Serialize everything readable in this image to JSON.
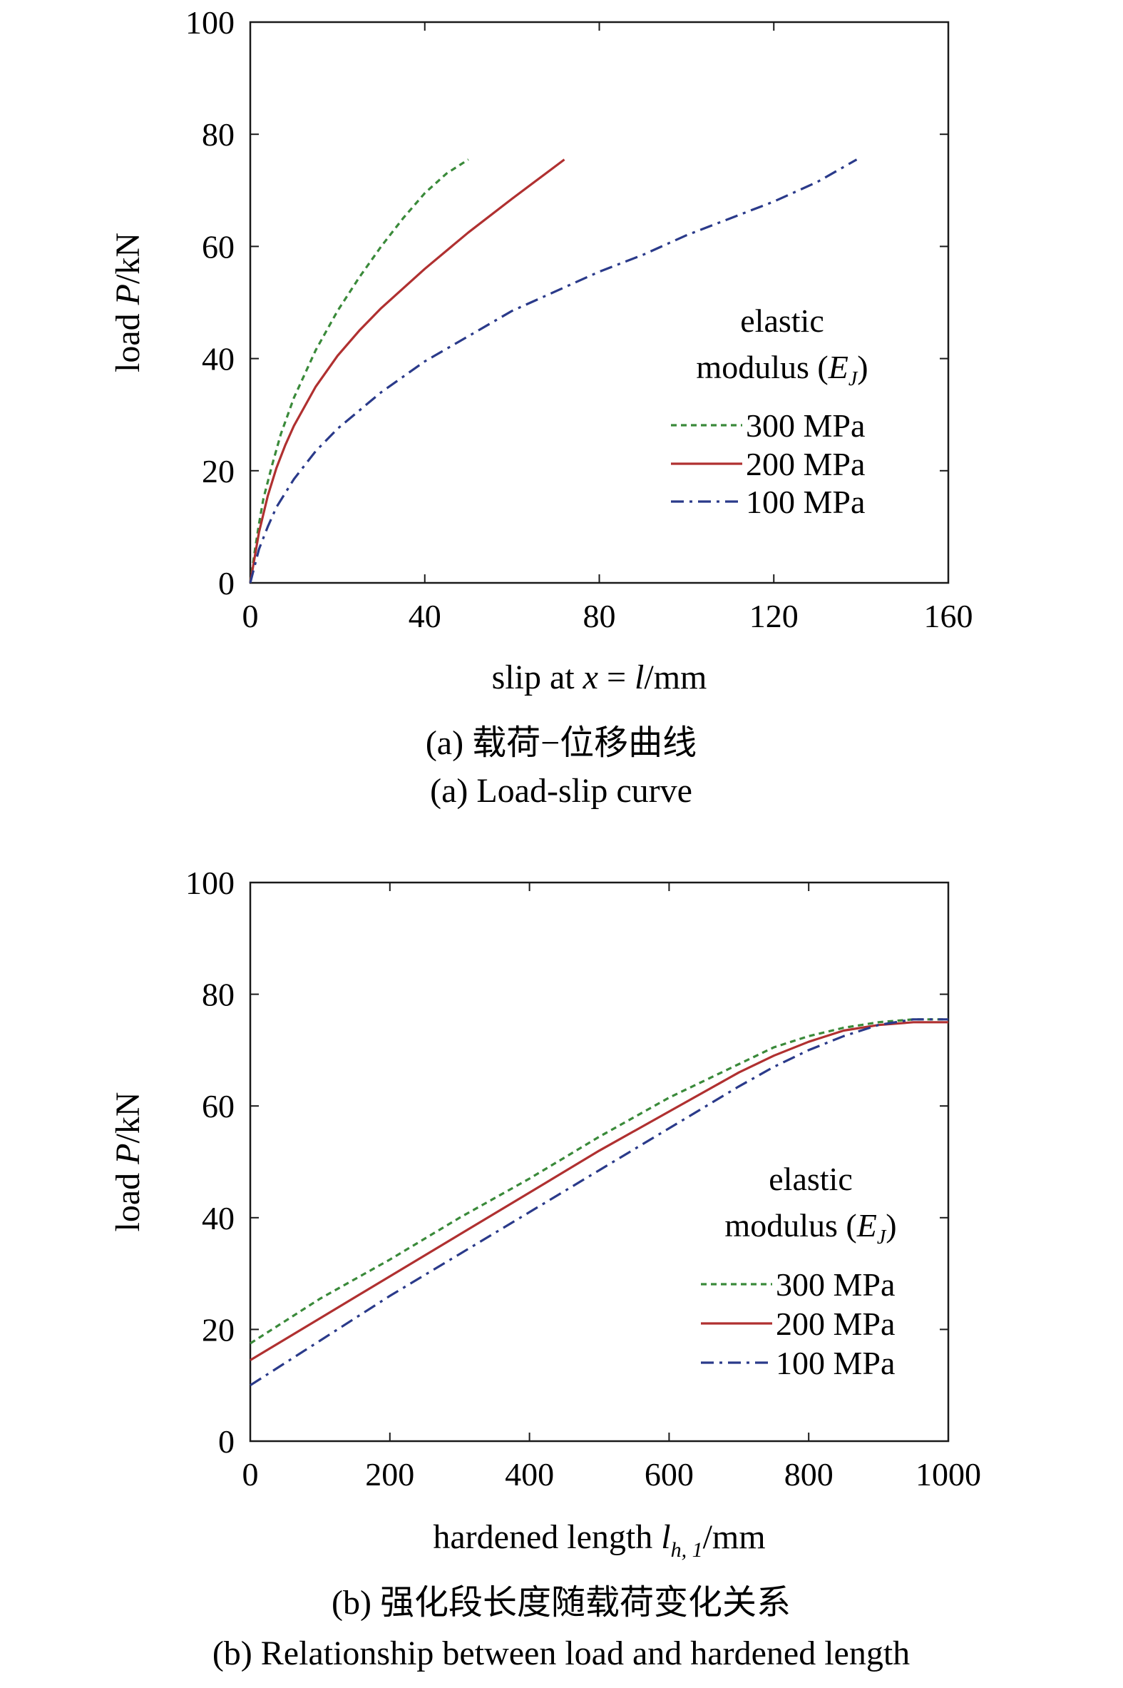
{
  "chart_data": [
    {
      "type": "line",
      "xlabel": "slip at x = l/mm",
      "ylabel": "load P/kN",
      "xlim": [
        0,
        160
      ],
      "ylim": [
        0,
        100
      ],
      "xticks": [
        "0",
        "40",
        "80",
        "120",
        "160"
      ],
      "yticks": [
        "0",
        "20",
        "40",
        "60",
        "80",
        "100"
      ],
      "legend_title": [
        "elastic",
        "modulus (E",
        "J",
        ")"
      ],
      "legend_placement": "right",
      "grid": false,
      "caption_cn": "(a) 载荷−位移曲线",
      "caption_en": "(a) Load-slip curve",
      "series": [
        {
          "name": "300 MPa",
          "color": "#3a8a3a",
          "dash": "dotted",
          "x": [
            0,
            1,
            2,
            3,
            5,
            7,
            10,
            15,
            20,
            25,
            30,
            35,
            40,
            45,
            50
          ],
          "y": [
            0,
            5.5,
            10.5,
            15,
            21,
            26.5,
            33,
            41.5,
            48.5,
            54.5,
            60,
            65,
            69.5,
            73,
            75.5
          ]
        },
        {
          "name": "200 MPa",
          "color": "#b03030",
          "dash": "solid",
          "x": [
            0,
            1,
            2,
            4,
            6,
            8,
            10,
            15,
            20,
            25,
            30,
            40,
            50,
            60,
            72
          ],
          "y": [
            0,
            4.5,
            9,
            15.5,
            20.5,
            24.5,
            28,
            35,
            40.5,
            45,
            49,
            56,
            62.5,
            68.5,
            75.5
          ]
        },
        {
          "name": "100 MPa",
          "color": "#2a3a8a",
          "dash": "dashdot",
          "x": [
            0,
            1,
            2,
            4,
            6,
            10,
            15,
            20,
            30,
            40,
            50,
            60,
            70,
            80,
            90,
            100,
            110,
            120,
            130,
            139
          ],
          "y": [
            0,
            3,
            6,
            10,
            13.5,
            18.5,
            23.5,
            27.5,
            34,
            39.5,
            44,
            48.5,
            52,
            55.5,
            58.5,
            62,
            65,
            68,
            71.5,
            75.5
          ]
        }
      ]
    },
    {
      "type": "line",
      "xlabel": "hardened length l",
      "xlabel_sub": "h, 1",
      "xlabel_suffix": "/mm",
      "ylabel": "load P/kN",
      "xlim": [
        0,
        1000
      ],
      "ylim": [
        0,
        100
      ],
      "xticks": [
        "0",
        "200",
        "400",
        "600",
        "800",
        "1000"
      ],
      "yticks": [
        "0",
        "20",
        "40",
        "60",
        "80",
        "100"
      ],
      "legend_title": [
        "elastic",
        "modulus (E",
        "J",
        ")"
      ],
      "legend_placement": "right",
      "grid": false,
      "caption_cn": "(b) 强化段长度随载荷变化关系",
      "caption_en": "(b) Relationship between load and hardened length",
      "series": [
        {
          "name": "300 MPa",
          "color": "#3a8a3a",
          "dash": "dotted",
          "x": [
            0,
            100,
            200,
            300,
            400,
            500,
            600,
            700,
            750,
            800,
            850,
            900,
            950,
            1000
          ],
          "y": [
            17.5,
            25.5,
            32.5,
            40,
            47,
            54.5,
            61.5,
            67.5,
            70.5,
            72.5,
            74,
            75,
            75.5,
            75.5
          ]
        },
        {
          "name": "200 MPa",
          "color": "#b03030",
          "dash": "solid",
          "x": [
            0,
            100,
            200,
            300,
            400,
            500,
            600,
            700,
            750,
            800,
            850,
            900,
            950,
            1000
          ],
          "y": [
            14.5,
            22,
            29.5,
            37,
            44.5,
            52,
            59,
            66,
            69,
            71.5,
            73.5,
            74.5,
            75,
            75
          ]
        },
        {
          "name": "100 MPa",
          "color": "#2a3a8a",
          "dash": "dashdot",
          "x": [
            0,
            100,
            200,
            300,
            400,
            500,
            600,
            700,
            750,
            800,
            850,
            900,
            950,
            1000
          ],
          "y": [
            10,
            18,
            26,
            33.5,
            41,
            48.5,
            56,
            63.5,
            67,
            70,
            72.5,
            74.5,
            75.5,
            75.5
          ]
        }
      ]
    }
  ]
}
